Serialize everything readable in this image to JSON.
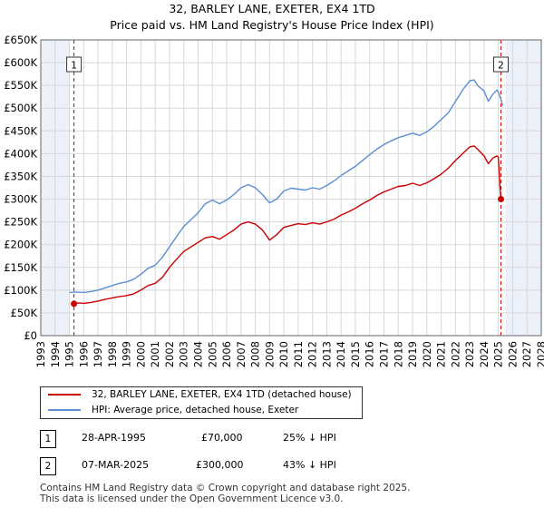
{
  "header": {
    "title": "32, BARLEY LANE, EXETER, EX4 1TD",
    "subtitle": "Price paid vs. HM Land Registry's House Price Index (HPI)"
  },
  "colors": {
    "price_paid": "#cc0000",
    "hpi": "#5b8fd4",
    "grid": "#d8d8d8",
    "shade": "#dce6f4",
    "marker_line": "#cc0000"
  },
  "chart_data": {
    "type": "line",
    "title": "32, BARLEY LANE, EXETER, EX4 1TD",
    "subtitle": "Price paid vs. HM Land Registry's House Price Index (HPI)",
    "xlabel": "",
    "ylabel": "",
    "xlim": [
      1993,
      2028
    ],
    "ylim": [
      0,
      650000
    ],
    "x_ticks": [
      1993,
      1994,
      1995,
      1996,
      1997,
      1998,
      1999,
      2000,
      2001,
      2002,
      2003,
      2004,
      2005,
      2006,
      2007,
      2008,
      2009,
      2010,
      2011,
      2012,
      2013,
      2014,
      2015,
      2016,
      2017,
      2018,
      2019,
      2020,
      2021,
      2022,
      2023,
      2024,
      2025,
      2026,
      2027,
      2028
    ],
    "y_ticks": [
      0,
      50000,
      100000,
      150000,
      200000,
      250000,
      300000,
      350000,
      400000,
      450000,
      500000,
      550000,
      600000,
      650000
    ],
    "y_tick_labels": [
      "£0",
      "£50K",
      "£100K",
      "£150K",
      "£200K",
      "£250K",
      "£300K",
      "£350K",
      "£400K",
      "£450K",
      "£500K",
      "£550K",
      "£600K",
      "£650K"
    ],
    "grid": true,
    "series": [
      {
        "name": "32, BARLEY LANE, EXETER, EX4 1TD (detached house)",
        "color": "#cc0000",
        "points": [
          [
            1995.32,
            70000
          ],
          [
            1995.6,
            72000
          ],
          [
            1996.0,
            71000
          ],
          [
            1996.5,
            73000
          ],
          [
            1997.0,
            76000
          ],
          [
            1997.5,
            80000
          ],
          [
            1998.0,
            83000
          ],
          [
            1998.5,
            86000
          ],
          [
            1999.0,
            88000
          ],
          [
            1999.5,
            92000
          ],
          [
            2000.0,
            100000
          ],
          [
            2000.5,
            110000
          ],
          [
            2001.0,
            115000
          ],
          [
            2001.5,
            128000
          ],
          [
            2002.0,
            150000
          ],
          [
            2002.5,
            168000
          ],
          [
            2003.0,
            185000
          ],
          [
            2003.5,
            195000
          ],
          [
            2004.0,
            205000
          ],
          [
            2004.5,
            215000
          ],
          [
            2005.0,
            218000
          ],
          [
            2005.5,
            212000
          ],
          [
            2006.0,
            222000
          ],
          [
            2006.5,
            232000
          ],
          [
            2007.0,
            245000
          ],
          [
            2007.5,
            250000
          ],
          [
            2008.0,
            245000
          ],
          [
            2008.5,
            232000
          ],
          [
            2009.0,
            210000
          ],
          [
            2009.5,
            222000
          ],
          [
            2010.0,
            238000
          ],
          [
            2010.5,
            242000
          ],
          [
            2011.0,
            246000
          ],
          [
            2011.5,
            244000
          ],
          [
            2012.0,
            248000
          ],
          [
            2012.5,
            245000
          ],
          [
            2013.0,
            250000
          ],
          [
            2013.5,
            256000
          ],
          [
            2014.0,
            265000
          ],
          [
            2014.5,
            272000
          ],
          [
            2015.0,
            280000
          ],
          [
            2015.5,
            290000
          ],
          [
            2016.0,
            298000
          ],
          [
            2016.5,
            308000
          ],
          [
            2017.0,
            316000
          ],
          [
            2017.5,
            322000
          ],
          [
            2018.0,
            328000
          ],
          [
            2018.5,
            330000
          ],
          [
            2019.0,
            335000
          ],
          [
            2019.5,
            330000
          ],
          [
            2020.0,
            336000
          ],
          [
            2020.5,
            345000
          ],
          [
            2021.0,
            355000
          ],
          [
            2021.5,
            368000
          ],
          [
            2022.0,
            385000
          ],
          [
            2022.5,
            400000
          ],
          [
            2023.0,
            415000
          ],
          [
            2023.3,
            417000
          ],
          [
            2023.6,
            408000
          ],
          [
            2024.0,
            395000
          ],
          [
            2024.3,
            378000
          ],
          [
            2024.6,
            390000
          ],
          [
            2024.9,
            395000
          ],
          [
            2025.0,
            392000
          ],
          [
            2025.1,
            330000
          ],
          [
            2025.18,
            300000
          ],
          [
            2025.3,
            296000
          ]
        ]
      },
      {
        "name": "HPI: Average price, detached house, Exeter",
        "color": "#5b8fd4",
        "points": [
          [
            1995.0,
            95000
          ],
          [
            1995.5,
            96000
          ],
          [
            1996.0,
            95000
          ],
          [
            1996.5,
            97000
          ],
          [
            1997.0,
            100000
          ],
          [
            1997.5,
            105000
          ],
          [
            1998.0,
            110000
          ],
          [
            1998.5,
            115000
          ],
          [
            1999.0,
            118000
          ],
          [
            1999.5,
            124000
          ],
          [
            2000.0,
            135000
          ],
          [
            2000.5,
            148000
          ],
          [
            2001.0,
            155000
          ],
          [
            2001.5,
            172000
          ],
          [
            2002.0,
            195000
          ],
          [
            2002.5,
            218000
          ],
          [
            2003.0,
            240000
          ],
          [
            2003.5,
            255000
          ],
          [
            2004.0,
            270000
          ],
          [
            2004.5,
            290000
          ],
          [
            2005.0,
            298000
          ],
          [
            2005.5,
            290000
          ],
          [
            2006.0,
            298000
          ],
          [
            2006.5,
            310000
          ],
          [
            2007.0,
            325000
          ],
          [
            2007.5,
            332000
          ],
          [
            2008.0,
            325000
          ],
          [
            2008.5,
            310000
          ],
          [
            2009.0,
            292000
          ],
          [
            2009.5,
            300000
          ],
          [
            2010.0,
            318000
          ],
          [
            2010.5,
            324000
          ],
          [
            2011.0,
            322000
          ],
          [
            2011.5,
            320000
          ],
          [
            2012.0,
            325000
          ],
          [
            2012.5,
            322000
          ],
          [
            2013.0,
            330000
          ],
          [
            2013.5,
            340000
          ],
          [
            2014.0,
            352000
          ],
          [
            2014.5,
            362000
          ],
          [
            2015.0,
            372000
          ],
          [
            2015.5,
            385000
          ],
          [
            2016.0,
            398000
          ],
          [
            2016.5,
            410000
          ],
          [
            2017.0,
            420000
          ],
          [
            2017.5,
            428000
          ],
          [
            2018.0,
            435000
          ],
          [
            2018.5,
            440000
          ],
          [
            2019.0,
            445000
          ],
          [
            2019.5,
            440000
          ],
          [
            2020.0,
            448000
          ],
          [
            2020.5,
            460000
          ],
          [
            2021.0,
            475000
          ],
          [
            2021.5,
            490000
          ],
          [
            2022.0,
            515000
          ],
          [
            2022.5,
            540000
          ],
          [
            2023.0,
            560000
          ],
          [
            2023.3,
            562000
          ],
          [
            2023.6,
            548000
          ],
          [
            2024.0,
            538000
          ],
          [
            2024.3,
            515000
          ],
          [
            2024.6,
            530000
          ],
          [
            2024.9,
            540000
          ],
          [
            2025.0,
            535000
          ],
          [
            2025.2,
            518000
          ],
          [
            2025.3,
            505000
          ]
        ]
      }
    ],
    "annotations": [
      {
        "label": "1",
        "x": 1995.32,
        "y": 70000
      },
      {
        "label": "2",
        "x": 2025.18,
        "y": 300000
      }
    ],
    "shaded_ranges": [
      [
        1993,
        1995.0
      ],
      [
        2025.5,
        2028
      ]
    ]
  },
  "legend": {
    "price_paid_label": "32, BARLEY LANE, EXETER, EX4 1TD (detached house)",
    "hpi_label": "HPI: Average price, detached house, Exeter"
  },
  "transactions": [
    {
      "num": "1",
      "date": "28-APR-1995",
      "price": "£70,000",
      "hpi_diff": "25% ↓ HPI"
    },
    {
      "num": "2",
      "date": "07-MAR-2025",
      "price": "£300,000",
      "hpi_diff": "43% ↓ HPI"
    }
  ],
  "footer": {
    "line1": "Contains HM Land Registry data © Crown copyright and database right 2025.",
    "line2": "This data is licensed under the Open Government Licence v3.0."
  }
}
